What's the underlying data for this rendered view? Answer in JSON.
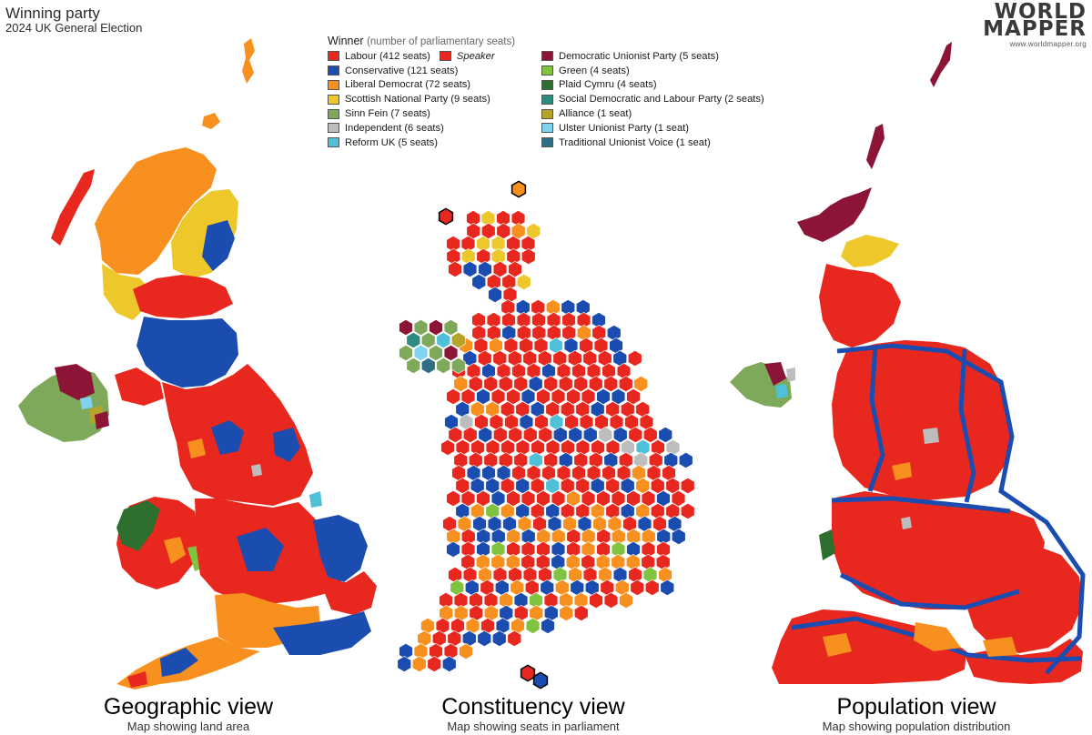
{
  "header": {
    "title": "Winning party",
    "subtitle": "2024 UK General Election"
  },
  "logo": {
    "line1": "WORLD",
    "line2": "MAPPER",
    "url": "www.worldmapper.org"
  },
  "legend": {
    "title": "Winner",
    "note": "(number of parliamentary seats)",
    "speaker": {
      "label": "Speaker",
      "color": "#e8281e"
    },
    "column1": [
      {
        "label": "Labour (412 seats)",
        "color": "#e8281e"
      },
      {
        "label": "Conservative (121 seats)",
        "color": "#1b4cb0"
      },
      {
        "label": "Liberal Democrat (72 seats)",
        "color": "#f7901e"
      },
      {
        "label": "Scottish National Party (9 seats)",
        "color": "#eec82a"
      },
      {
        "label": "Sinn Fein (7 seats)",
        "color": "#7fa95a"
      },
      {
        "label": "Independent (6 seats)",
        "color": "#bdbdbd"
      },
      {
        "label": "Reform UK (5 seats)",
        "color": "#4ec0d8"
      }
    ],
    "column2": [
      {
        "label": "Democratic Unionist Party (5 seats)",
        "color": "#8c1437"
      },
      {
        "label": "Green (4 seats)",
        "color": "#80c341"
      },
      {
        "label": "Plaid Cymru (4 seats)",
        "color": "#2e6e2e"
      },
      {
        "label": "Social Democratic and Labour Party (2 seats)",
        "color": "#2f8a80"
      },
      {
        "label": "Alliance (1 seat)",
        "color": "#b5a32a"
      },
      {
        "label": "Ulster Unionist Party (1 seat)",
        "color": "#7fd3ee"
      },
      {
        "label": "Traditional Unionist Voice (1 seat)",
        "color": "#2f6f86"
      }
    ]
  },
  "views": {
    "geographic": {
      "title": "Geographic view",
      "subtitle": "Map showing land area"
    },
    "constituency": {
      "title": "Constituency view",
      "subtitle": "Map showing seats in parliament"
    },
    "population": {
      "title": "Population view",
      "subtitle": "Map showing population distribution"
    }
  },
  "colors": {
    "labour": "#e8281e",
    "conservative": "#1b4cb0",
    "libdem": "#f7901e",
    "snp": "#eec82a",
    "sinnfein": "#7fa95a",
    "independent": "#bdbdbd",
    "reform": "#4ec0d8",
    "dup": "#8c1437",
    "green": "#80c341",
    "plaid": "#2e6e2e",
    "sdlp": "#2f8a80",
    "alliance": "#b5a32a",
    "uup": "#7fd3ee",
    "tuv": "#2f6f86"
  }
}
